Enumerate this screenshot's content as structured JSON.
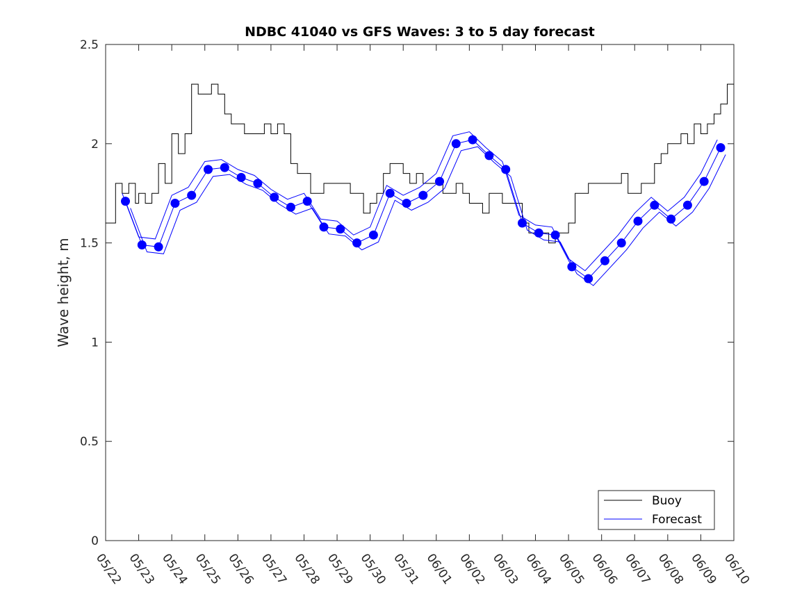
{
  "chart_data": {
    "type": "line",
    "title": "NDBC 41040 vs GFS Waves: 3 to 5 day forecast",
    "xlabel": "",
    "ylabel": "Wave height, m",
    "x_range": [
      "05/22",
      "06/10"
    ],
    "ylim": [
      0,
      2.5
    ],
    "y_ticks": [
      "0",
      "0.5",
      "1",
      "1.5",
      "2",
      "2.5"
    ],
    "x_ticks": [
      "05/22",
      "05/23",
      "05/24",
      "05/25",
      "05/26",
      "05/27",
      "05/28",
      "05/29",
      "05/30",
      "05/31",
      "06/01",
      "06/02",
      "06/03",
      "06/04",
      "06/05",
      "06/06",
      "06/07",
      "06/08",
      "06/09",
      "06/10"
    ],
    "grid": false,
    "legend_position": "bottom-right",
    "colors": {
      "buoy": "#000000",
      "forecast": "#0000ff"
    },
    "legend": [
      {
        "label": "Buoy",
        "color": "#000000"
      },
      {
        "label": "Forecast",
        "color": "#0000ff"
      }
    ],
    "series": [
      {
        "name": "Buoy",
        "style": "line",
        "color": "#000000",
        "x": [
          0.0,
          0.3,
          0.5,
          0.7,
          0.9,
          1.0,
          1.2,
          1.4,
          1.6,
          1.8,
          2.0,
          2.2,
          2.4,
          2.6,
          2.8,
          3.0,
          3.2,
          3.4,
          3.6,
          3.8,
          4.0,
          4.2,
          4.4,
          4.6,
          4.8,
          5.0,
          5.2,
          5.4,
          5.6,
          5.8,
          6.0,
          6.2,
          6.4,
          6.6,
          6.8,
          7.0,
          7.2,
          7.4,
          7.6,
          7.8,
          8.0,
          8.2,
          8.4,
          8.6,
          8.8,
          9.0,
          9.2,
          9.4,
          9.6,
          9.8,
          10.0,
          10.2,
          10.4,
          10.6,
          10.8,
          11.0,
          11.2,
          11.4,
          11.6,
          11.8,
          12.0,
          12.2,
          12.4,
          12.6,
          12.8,
          13.0,
          13.2,
          13.4,
          13.6,
          13.8,
          14.0,
          14.2,
          14.4,
          14.6,
          14.8,
          15.0,
          15.2,
          15.4,
          15.6,
          15.8,
          16.0,
          16.2,
          16.4,
          16.6,
          16.8,
          17.0,
          17.2,
          17.4,
          17.6,
          17.8,
          18.0,
          18.2,
          18.4,
          18.6,
          18.8,
          19.0
        ],
        "y": [
          1.6,
          1.8,
          1.75,
          1.8,
          1.7,
          1.75,
          1.7,
          1.75,
          1.9,
          1.8,
          2.05,
          1.95,
          2.05,
          2.3,
          2.25,
          2.25,
          2.3,
          2.25,
          2.15,
          2.1,
          2.1,
          2.05,
          2.05,
          2.05,
          2.1,
          2.05,
          2.1,
          2.05,
          1.9,
          1.85,
          1.85,
          1.75,
          1.75,
          1.8,
          1.8,
          1.8,
          1.8,
          1.75,
          1.75,
          1.65,
          1.7,
          1.75,
          1.85,
          1.9,
          1.9,
          1.85,
          1.8,
          1.85,
          1.8,
          1.8,
          1.8,
          1.75,
          1.75,
          1.8,
          1.75,
          1.7,
          1.7,
          1.65,
          1.75,
          1.75,
          1.7,
          1.7,
          1.7,
          1.6,
          1.55,
          1.55,
          1.55,
          1.5,
          1.55,
          1.55,
          1.6,
          1.75,
          1.75,
          1.8,
          1.8,
          1.8,
          1.8,
          1.8,
          1.85,
          1.75,
          1.75,
          1.8,
          1.8,
          1.9,
          1.95,
          2.0,
          2.0,
          2.05,
          2.0,
          2.1,
          2.05,
          2.1,
          2.15,
          2.2,
          2.3,
          2.3
        ]
      },
      {
        "name": "Forecast",
        "style": "markers",
        "color": "#0000ff",
        "x": [
          0.6,
          1.1,
          1.6,
          2.1,
          2.6,
          3.1,
          3.6,
          4.1,
          4.6,
          5.1,
          5.6,
          6.1,
          6.6,
          7.1,
          7.6,
          8.1,
          8.6,
          9.1,
          9.6,
          10.1,
          10.6,
          11.1,
          11.6,
          12.1,
          12.6,
          13.1,
          13.6,
          14.1,
          14.6,
          15.1,
          15.6,
          16.1,
          16.6,
          17.1,
          17.6,
          18.1,
          18.6
        ],
        "y": [
          1.71,
          1.49,
          1.48,
          1.7,
          1.74,
          1.87,
          1.88,
          1.83,
          1.8,
          1.73,
          1.68,
          1.71,
          1.58,
          1.57,
          1.5,
          1.54,
          1.75,
          1.7,
          1.74,
          1.81,
          2.0,
          2.02,
          1.94,
          1.87,
          1.6,
          1.55,
          1.54,
          1.38,
          1.32,
          1.41,
          1.5,
          1.61,
          1.69,
          1.62,
          1.69,
          1.81,
          1.98
        ]
      }
    ]
  }
}
